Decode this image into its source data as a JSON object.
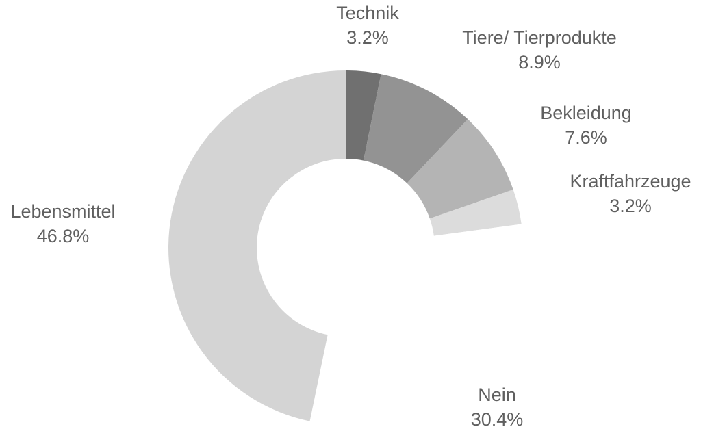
{
  "chart_data": {
    "type": "donut",
    "title": "",
    "slices": [
      {
        "label": "Technik",
        "value": 3.2,
        "value_label": "3.2%",
        "color": "#707070"
      },
      {
        "label": "Tiere/ Tierprodukte",
        "value": 8.9,
        "value_label": "8.9%",
        "color": "#939393"
      },
      {
        "label": "Bekleidung",
        "value": 7.6,
        "value_label": "7.6%",
        "color": "#b4b4b4"
      },
      {
        "label": "Kraftfahrzeuge",
        "value": 3.2,
        "value_label": "3.2%",
        "color": "#dcdcdc"
      },
      {
        "label": "Nein",
        "value": 30.4,
        "value_label": "30.4%",
        "color": "#ffffff"
      },
      {
        "label": "Lebensmittel",
        "value": 46.8,
        "value_label": "46.8%",
        "color": "#d4d4d4"
      }
    ],
    "text_color": "#5f5f5f",
    "start_angle": "12 o'clock",
    "direction": "clockwise"
  }
}
